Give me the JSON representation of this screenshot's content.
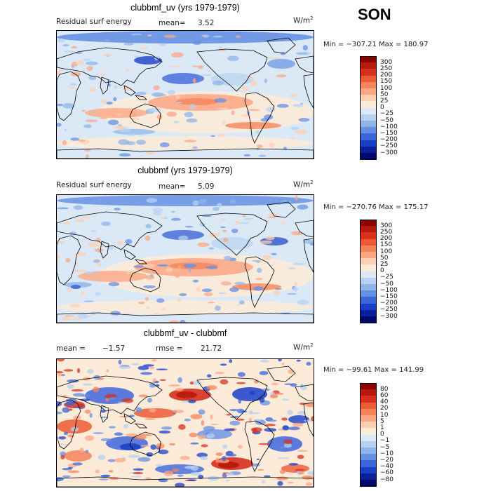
{
  "season": "SON",
  "panels": [
    {
      "title": "clubbmf_uv (yrs 1979-1979)",
      "left_label": "Residual surf energy",
      "stat_label": "mean=",
      "stat_value": "3.52",
      "stat2_label": "",
      "stat2_value": "",
      "units": "W/m",
      "units_sup": "2",
      "min_label": "Min = ",
      "min_value": "−307.21",
      "max_label": " Max = ",
      "max_value": "180.97",
      "levels": [
        "300",
        "250",
        "200",
        "150",
        "100",
        "50",
        "25",
        "0",
        "−25",
        "−50",
        "−100",
        "−150",
        "−200",
        "−250",
        "−300"
      ],
      "colors": [
        "#8b0000",
        "#b51a0a",
        "#d7301f",
        "#ec5b36",
        "#f5845a",
        "#fba784",
        "#fdcfb2",
        "#fcebd9",
        "#dbe9f6",
        "#b7d1f0",
        "#8fb4ea",
        "#6690e3",
        "#3e66db",
        "#1a3ec8",
        "#0a1f99",
        "#000a6e"
      ]
    },
    {
      "title": "clubbmf (yrs 1979-1979)",
      "left_label": "Residual surf energy",
      "stat_label": "mean=",
      "stat_value": "5.09",
      "stat2_label": "",
      "stat2_value": "",
      "units": "W/m",
      "units_sup": "2",
      "min_label": "Min = ",
      "min_value": "−270.76",
      "max_label": " Max = ",
      "max_value": "175.17",
      "levels": [
        "300",
        "250",
        "200",
        "150",
        "100",
        "50",
        "25",
        "0",
        "−25",
        "−50",
        "−100",
        "−150",
        "−200",
        "−250",
        "−300"
      ],
      "colors": [
        "#8b0000",
        "#b51a0a",
        "#d7301f",
        "#ec5b36",
        "#f5845a",
        "#fba784",
        "#fdcfb2",
        "#fcebd9",
        "#dbe9f6",
        "#b7d1f0",
        "#8fb4ea",
        "#6690e3",
        "#3e66db",
        "#1a3ec8",
        "#0a1f99",
        "#000a6e"
      ]
    },
    {
      "title": "clubbmf_uv - clubbmf",
      "left_label": "mean =",
      "stat_label": "",
      "stat_value": "−1.57",
      "stat2_label": "rmse =",
      "stat2_value": "21.72",
      "units": "W/m",
      "units_sup": "2",
      "min_label": "Min = ",
      "min_value": "−99.61",
      "max_label": " Max = ",
      "max_value": "141.99",
      "levels": [
        "80",
        "60",
        "40",
        "20",
        "10",
        "5",
        "1",
        "0",
        "−1",
        "−5",
        "−10",
        "−20",
        "−40",
        "−60",
        "−80"
      ],
      "colors": [
        "#8b0000",
        "#b51a0a",
        "#d7301f",
        "#ec5b36",
        "#f5845a",
        "#fba784",
        "#fdcfb2",
        "#fcebd9",
        "#dbe9f6",
        "#b7d1f0",
        "#8fb4ea",
        "#6690e3",
        "#3e66db",
        "#1a3ec8",
        "#0a1f99",
        "#000a6e"
      ]
    }
  ],
  "chart_data": {
    "type": "heatmap",
    "title": "SON",
    "panels": [
      {
        "title": "clubbmf_uv (yrs 1979-1979)",
        "field": "Residual surf energy",
        "units": "W/m2",
        "mean": 3.52,
        "min": -307.21,
        "max": 180.97,
        "contour_levels": [
          300,
          250,
          200,
          150,
          100,
          50,
          25,
          0,
          -25,
          -50,
          -100,
          -150,
          -200,
          -250,
          -300
        ]
      },
      {
        "title": "clubbmf (yrs 1979-1979)",
        "field": "Residual surf energy",
        "units": "W/m2",
        "mean": 5.09,
        "min": -270.76,
        "max": 175.17,
        "contour_levels": [
          300,
          250,
          200,
          150,
          100,
          50,
          25,
          0,
          -25,
          -50,
          -100,
          -150,
          -200,
          -250,
          -300
        ]
      },
      {
        "title": "clubbmf_uv - clubbmf",
        "units": "W/m2",
        "mean": -1.57,
        "rmse": 21.72,
        "min": -99.61,
        "max": 141.99,
        "contour_levels": [
          80,
          60,
          40,
          20,
          10,
          5,
          1,
          0,
          -1,
          -5,
          -10,
          -20,
          -40,
          -60,
          -80
        ]
      }
    ]
  }
}
